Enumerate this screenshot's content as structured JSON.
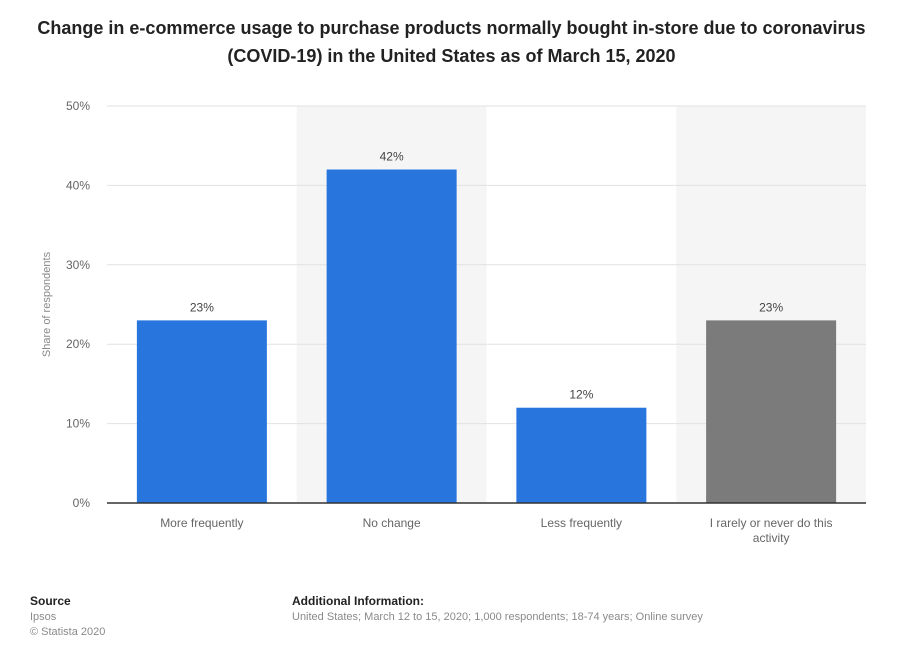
{
  "title": "Change in e-commerce usage to purchase products normally bought in-store due to coronavirus (COVID-19) in the United States as of March 15, 2020",
  "footer": {
    "source_label": "Source",
    "source_name": "Ipsos",
    "copyright": "© Statista 2020",
    "additional_label": "Additional Information:",
    "additional_text": "United States; March 12 to 15, 2020; 1,000 respondents; 18-74 years; Online survey"
  },
  "colors": {
    "bar_blue": "#2975DE",
    "bar_gray": "#7B7B7B",
    "band": "#F5F5F5",
    "grid": "#E2E2E2",
    "axis": "#333333",
    "text_muted": "#666666"
  },
  "chart_data": {
    "type": "bar",
    "categories": [
      "More frequently",
      "No change",
      "Less frequently",
      "I rarely or never do this activity"
    ],
    "values": [
      23,
      42,
      12,
      23
    ],
    "value_labels": [
      "23%",
      "42%",
      "12%",
      "23%"
    ],
    "bar_colors": [
      "#2975DE",
      "#2975DE",
      "#2975DE",
      "#7B7B7B"
    ],
    "ylabel": "Share of respondents",
    "ylim": [
      0,
      50
    ],
    "yticks": [
      0,
      10,
      20,
      30,
      40,
      50
    ],
    "ytick_labels": [
      "0%",
      "10%",
      "20%",
      "30%",
      "40%",
      "50%"
    ],
    "grid": true
  }
}
